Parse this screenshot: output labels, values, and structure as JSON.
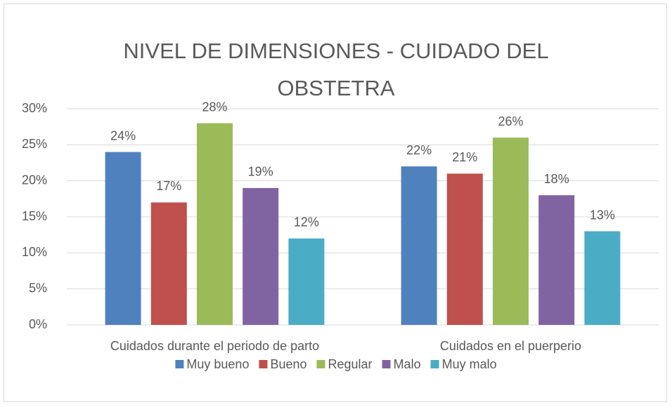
{
  "chart_data": {
    "type": "bar",
    "title": "NIVEL DE DIMENSIONES - CUIDADO DEL OBSTETRA",
    "categories": [
      "Cuidados durante el periodo de parto",
      "Cuidados en el puerperio"
    ],
    "series": [
      {
        "name": "Muy bueno",
        "color": "#4f81bd",
        "values": [
          24,
          22
        ],
        "value_labels": [
          "24%",
          "22%"
        ]
      },
      {
        "name": "Bueno",
        "color": "#c0504d",
        "values": [
          17,
          21
        ],
        "value_labels": [
          "17%",
          "21%"
        ]
      },
      {
        "name": "Regular",
        "color": "#9bbb59",
        "values": [
          28,
          26
        ],
        "value_labels": [
          "28%",
          "26%"
        ]
      },
      {
        "name": "Malo",
        "color": "#8064a2",
        "values": [
          19,
          18
        ],
        "value_labels": [
          "19%",
          "18%"
        ]
      },
      {
        "name": "Muy malo",
        "color": "#4bacc6",
        "values": [
          12,
          13
        ],
        "value_labels": [
          "12%",
          "13%"
        ]
      }
    ],
    "ylim": [
      0,
      30
    ],
    "yticks": [
      {
        "value": 0,
        "label": "0%"
      },
      {
        "value": 5,
        "label": "5%"
      },
      {
        "value": 10,
        "label": "10%"
      },
      {
        "value": 15,
        "label": "15%"
      },
      {
        "value": 20,
        "label": "20%"
      },
      {
        "value": 25,
        "label": "25%"
      },
      {
        "value": 30,
        "label": "30%"
      }
    ],
    "grid": true,
    "legend": "bottom"
  }
}
